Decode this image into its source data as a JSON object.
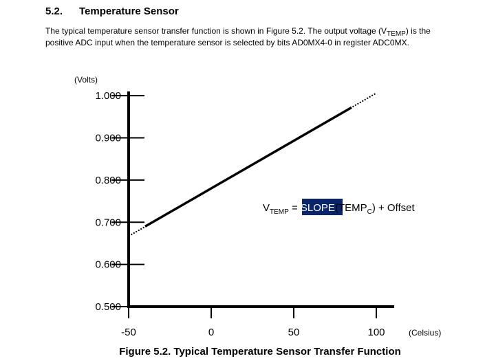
{
  "header": {
    "number": "5.2.",
    "title": "Temperature Sensor"
  },
  "paragraph": {
    "parts": [
      "The typical temperature sensor transfer function is shown in Figure 5.2. The output voltage (V",
      "TEMP",
      ") is the",
      "positive ADC input when the temperature sensor is selected by bits AD0MX4-0 in register ADC0MX."
    ]
  },
  "chart_data": {
    "type": "line",
    "y_label": "(Volts)",
    "x_label": "(Celsius)",
    "caption": "Figure 5.2. Typical Temperature Sensor Transfer Function",
    "annotation": {
      "parts": [
        "V",
        "TEMP",
        " = ",
        "SLOPE",
        "(TEMP",
        "C",
        ") + Offset"
      ]
    },
    "xlim": [
      -50,
      110
    ],
    "ylim": [
      0.5,
      1.01
    ],
    "xticks": [
      -50,
      0,
      50,
      100
    ],
    "yticks": [
      {
        "value": 0.5,
        "label": "0.500"
      },
      {
        "value": 0.6,
        "label": "0.600"
      },
      {
        "value": 0.7,
        "label": "0.700"
      },
      {
        "value": 0.8,
        "label": "0.800"
      },
      {
        "value": 0.9,
        "label": "0.900"
      },
      {
        "value": 1.0,
        "label": "1.000"
      }
    ],
    "series": [
      {
        "style": "dotted",
        "color": "#000000",
        "x": [
          -50,
          100
        ],
        "values": [
          0.667,
          1.006
        ]
      },
      {
        "style": "solid",
        "color": "#000000",
        "x": [
          -40,
          85
        ],
        "values": [
          0.69,
          0.972
        ]
      }
    ]
  }
}
